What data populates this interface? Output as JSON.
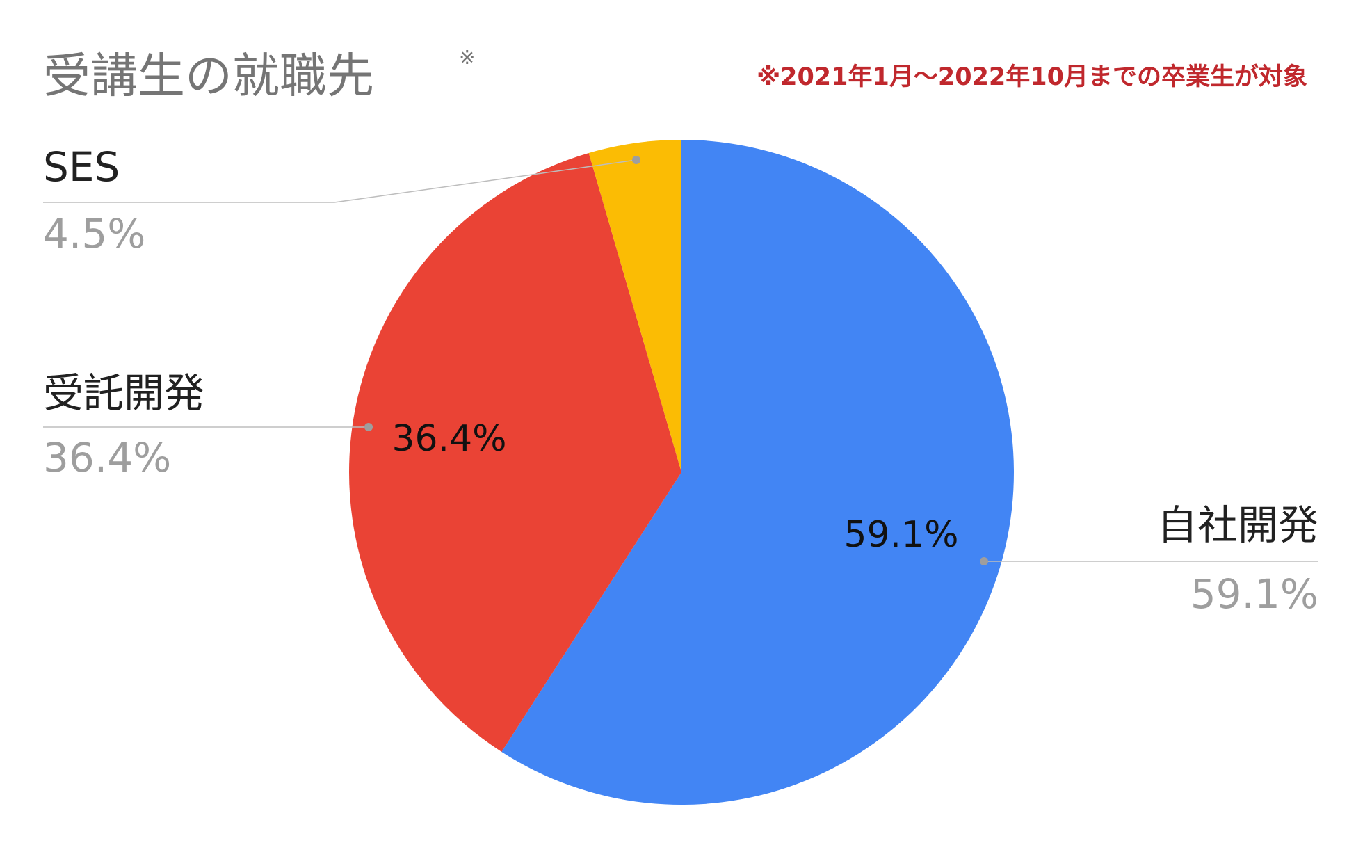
{
  "chart_data": {
    "type": "pie",
    "title": "受講生の就職先",
    "title_mark": "※",
    "note": "※2021年1月〜2022年10月までの卒業生が対象",
    "categories": [
      "自社開発",
      "受託開発",
      "SES"
    ],
    "values": [
      59.1,
      36.4,
      4.5
    ],
    "value_labels": [
      "59.1%",
      "36.4%",
      "4.5%"
    ],
    "colors": [
      "#4285f4",
      "#ea4335",
      "#fbbc04"
    ]
  }
}
